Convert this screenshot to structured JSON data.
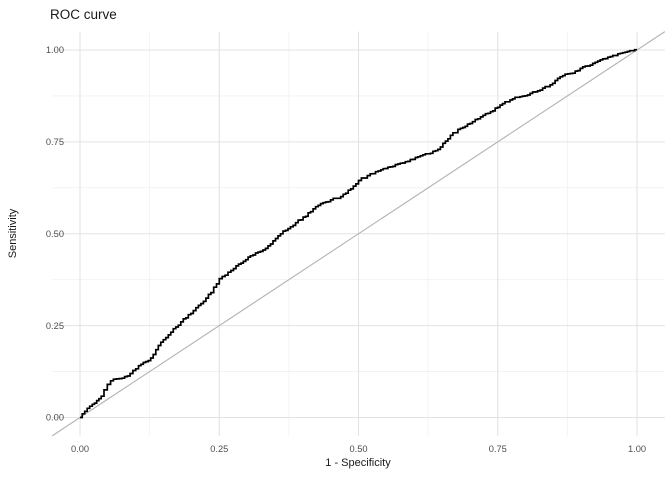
{
  "figure": {
    "title": "ROC curve"
  },
  "axes": {
    "x_title": "1 - Specificity",
    "y_title": "Sensitivity",
    "x_tick_labels": [
      "0.00",
      "0.25",
      "0.50",
      "0.75",
      "1.00"
    ],
    "y_tick_labels": [
      "0.00",
      "0.25",
      "0.50",
      "0.75",
      "1.00"
    ]
  },
  "colors": {
    "background": "#ffffff",
    "roc_curve": "#000000",
    "chance_diagonal": "#b3b3b3",
    "grid_major": "#e3e3e3",
    "grid_minor": "#f1f1f1",
    "tick_text": "#4d4d4d",
    "title_text": "#1a1a1a"
  },
  "chart_data": {
    "type": "line",
    "title": "ROC curve",
    "xlabel": "1 - Specificity",
    "ylabel": "Sensitivity",
    "xlim": [
      -0.05,
      1.05
    ],
    "ylim": [
      -0.05,
      1.05
    ],
    "x_ticks": [
      0,
      0.25,
      0.5,
      0.75,
      1
    ],
    "y_ticks": [
      0,
      0.25,
      0.5,
      0.75,
      1
    ],
    "grid": "major and minor gridlines, no axis lines, no tick marks",
    "legend": "none",
    "series": [
      {
        "name": "roc-curve",
        "style": "step-line",
        "color": "#000000",
        "points": [
          [
            0.0,
            0.0
          ],
          [
            0.004,
            0.01
          ],
          [
            0.013,
            0.025
          ],
          [
            0.022,
            0.036
          ],
          [
            0.03,
            0.046
          ],
          [
            0.038,
            0.058
          ],
          [
            0.043,
            0.075
          ],
          [
            0.049,
            0.09
          ],
          [
            0.055,
            0.1
          ],
          [
            0.065,
            0.105
          ],
          [
            0.075,
            0.107
          ],
          [
            0.085,
            0.113
          ],
          [
            0.095,
            0.128
          ],
          [
            0.105,
            0.141
          ],
          [
            0.118,
            0.152
          ],
          [
            0.127,
            0.162
          ],
          [
            0.145,
            0.205
          ],
          [
            0.163,
            0.232
          ],
          [
            0.181,
            0.26
          ],
          [
            0.199,
            0.283
          ],
          [
            0.217,
            0.31
          ],
          [
            0.235,
            0.34
          ],
          [
            0.25,
            0.378
          ],
          [
            0.271,
            0.4
          ],
          [
            0.289,
            0.42
          ],
          [
            0.306,
            0.44
          ],
          [
            0.324,
            0.452
          ],
          [
            0.342,
            0.472
          ],
          [
            0.36,
            0.5
          ],
          [
            0.387,
            0.53
          ],
          [
            0.414,
            0.56
          ],
          [
            0.432,
            0.582
          ],
          [
            0.45,
            0.592
          ],
          [
            0.468,
            0.601
          ],
          [
            0.486,
            0.622
          ],
          [
            0.5,
            0.645
          ],
          [
            0.521,
            0.663
          ],
          [
            0.54,
            0.674
          ],
          [
            0.557,
            0.682
          ],
          [
            0.575,
            0.692
          ],
          [
            0.593,
            0.702
          ],
          [
            0.611,
            0.712
          ],
          [
            0.629,
            0.719
          ],
          [
            0.647,
            0.736
          ],
          [
            0.665,
            0.768
          ],
          [
            0.683,
            0.787
          ],
          [
            0.7,
            0.8
          ],
          [
            0.719,
            0.818
          ],
          [
            0.737,
            0.832
          ],
          [
            0.754,
            0.85
          ],
          [
            0.772,
            0.864
          ],
          [
            0.79,
            0.873
          ],
          [
            0.808,
            0.882
          ],
          [
            0.826,
            0.891
          ],
          [
            0.844,
            0.905
          ],
          [
            0.862,
            0.927
          ],
          [
            0.88,
            0.936
          ],
          [
            0.898,
            0.95
          ],
          [
            0.916,
            0.959
          ],
          [
            0.934,
            0.973
          ],
          [
            0.952,
            0.982
          ],
          [
            0.97,
            0.991
          ],
          [
            0.987,
            0.998
          ],
          [
            1.0,
            1.0
          ]
        ]
      },
      {
        "name": "chance-diagonal",
        "style": "straight-line",
        "color": "#b3b3b3",
        "points": [
          [
            0,
            0
          ],
          [
            1,
            1
          ]
        ]
      }
    ]
  }
}
